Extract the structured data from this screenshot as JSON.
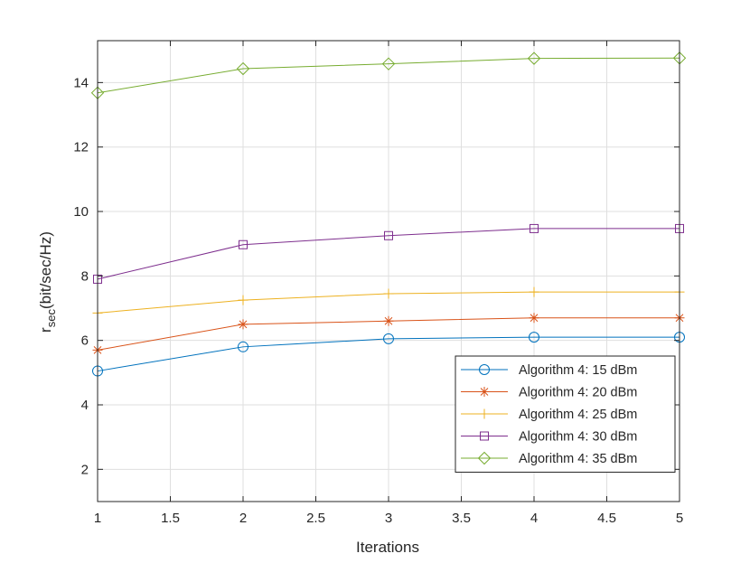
{
  "chart_data": {
    "type": "line",
    "title": "",
    "xlabel": "Iterations",
    "ylabel_main": "r",
    "ylabel_sub": "sec",
    "ylabel_unit": "(bit/sec/Hz)",
    "xlim": [
      1,
      5
    ],
    "ylim": [
      1,
      15.3
    ],
    "xticks": [
      1,
      1.5,
      2,
      2.5,
      3,
      3.5,
      4,
      4.5,
      5
    ],
    "xtick_labels": [
      "1",
      "1.5",
      "2",
      "2.5",
      "3",
      "3.5",
      "4",
      "4.5",
      "5"
    ],
    "yticks": [
      2,
      4,
      6,
      8,
      10,
      12,
      14
    ],
    "ytick_labels": [
      "2",
      "4",
      "6",
      "8",
      "10",
      "12",
      "14"
    ],
    "grid": true,
    "legend_position": "bottom-right",
    "x": [
      1,
      2,
      3,
      4,
      5
    ],
    "series": [
      {
        "name": "Algorithm 4: 15 dBm",
        "color": "#0072BD",
        "marker": "circle",
        "values": [
          5.05,
          5.8,
          6.05,
          6.1,
          6.1
        ]
      },
      {
        "name": "Algorithm 4: 20 dBm",
        "color": "#D95319",
        "marker": "asterisk",
        "values": [
          5.7,
          6.5,
          6.6,
          6.7,
          6.7
        ]
      },
      {
        "name": "Algorithm 4: 25 dBm",
        "color": "#EDB120",
        "marker": "plus",
        "values": [
          6.85,
          7.25,
          7.45,
          7.5,
          7.5
        ]
      },
      {
        "name": "Algorithm 4: 30 dBm",
        "color": "#7E2F8E",
        "marker": "square",
        "values": [
          7.9,
          8.97,
          9.25,
          9.47,
          9.47
        ]
      },
      {
        "name": "Algorithm 4: 35 dBm",
        "color": "#77AC30",
        "marker": "diamond",
        "values": [
          13.68,
          14.43,
          14.58,
          14.75,
          14.76
        ]
      }
    ]
  }
}
